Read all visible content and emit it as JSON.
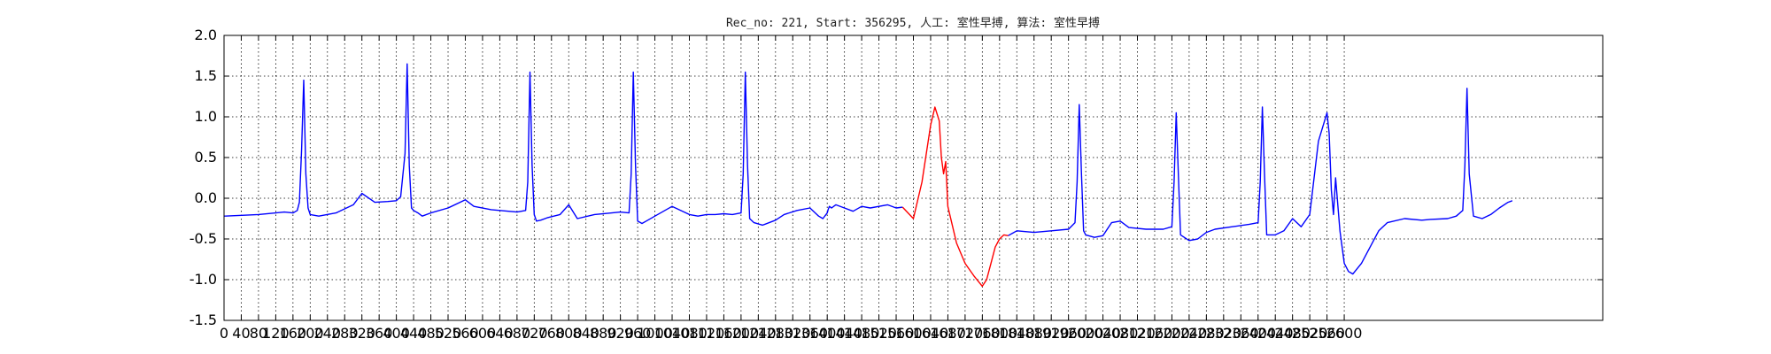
{
  "chart_data": {
    "type": "line",
    "title": "Rec_no: 221, Start: 356295, 人工: 室性早搏, 算法: 室性早搏",
    "xlabel": "",
    "ylabel": "",
    "xlim": [
      0,
      3200
    ],
    "ylim": [
      -1.5,
      2.0
    ],
    "grid": true,
    "y_ticks": [
      "2.0",
      "1.5",
      "1.0",
      "0.5",
      "0.0",
      "-0.5",
      "-1.0",
      "-1.5"
    ],
    "x_ticks": [
      "0",
      "40",
      "80",
      "120",
      "160",
      "200",
      "240",
      "280",
      "320",
      "360",
      "400",
      "440",
      "480",
      "520",
      "560",
      "600",
      "640",
      "680",
      "720",
      "760",
      "800",
      "840",
      "880",
      "920",
      "960",
      "1000",
      "1040",
      "1080",
      "1120",
      "1160",
      "1200",
      "1240",
      "1280",
      "1320",
      "1360",
      "1400",
      "1440",
      "1480",
      "1520",
      "1560",
      "1600",
      "1640",
      "1680",
      "1720",
      "1760",
      "1800",
      "1840",
      "1880",
      "1920",
      "1960",
      "2000",
      "2040",
      "2080",
      "2120",
      "2160",
      "2200",
      "2240",
      "2280",
      "2320",
      "2360",
      "2400",
      "2440",
      "2480",
      "2520",
      "2560",
      "2600"
    ],
    "series": [
      {
        "color": "#0000ff",
        "x": [
          0,
          80,
          120,
          140,
          160,
          170,
          175,
          180,
          185,
          190,
          195,
          200,
          220,
          260,
          300,
          320,
          350,
          380,
          400,
          410,
          420,
          425,
          430,
          435,
          440,
          450,
          460,
          480,
          520,
          560,
          580,
          620,
          660,
          680,
          700,
          705,
          710,
          715,
          720,
          725,
          735,
          750,
          780,
          800,
          820,
          860,
          900,
          920,
          940,
          945,
          950,
          955,
          960,
          970,
          980,
          1000,
          1040,
          1080,
          1100,
          1120,
          1140,
          1160,
          1180,
          1200,
          1205,
          1210,
          1215,
          1220,
          1230,
          1250,
          1280,
          1300,
          1330,
          1360,
          1380,
          1390,
          1400,
          1402,
          1405,
          1410,
          1415,
          1420,
          1440,
          1460,
          1480,
          1500,
          1540,
          1560,
          1575
        ],
        "y": [
          -0.22,
          -0.2,
          -0.18,
          -0.17,
          -0.18,
          -0.15,
          -0.05,
          0.6,
          1.45,
          0.3,
          -0.12,
          -0.2,
          -0.22,
          -0.18,
          -0.08,
          0.06,
          -0.05,
          -0.04,
          -0.03,
          0.02,
          0.55,
          1.65,
          0.4,
          -0.12,
          -0.15,
          -0.18,
          -0.22,
          -0.18,
          -0.12,
          -0.02,
          -0.1,
          -0.14,
          -0.16,
          -0.17,
          -0.15,
          0.2,
          1.55,
          0.4,
          -0.2,
          -0.28,
          -0.27,
          -0.24,
          -0.2,
          -0.08,
          -0.25,
          -0.2,
          -0.18,
          -0.17,
          -0.18,
          0.3,
          1.55,
          0.4,
          -0.28,
          -0.31,
          -0.28,
          -0.22,
          -0.1,
          -0.2,
          -0.22,
          -0.2,
          -0.2,
          -0.19,
          -0.2,
          -0.18,
          0.3,
          1.55,
          0.4,
          -0.25,
          -0.3,
          -0.33,
          -0.27,
          -0.2,
          -0.15,
          -0.12,
          -0.22,
          -0.25,
          -0.18,
          -0.14,
          -0.1,
          -0.12,
          -0.1,
          -0.08,
          -0.12,
          -0.16,
          -0.1,
          -0.12,
          -0.08,
          -0.12,
          -0.11
        ]
      },
      {
        "color": "#ff0000",
        "x": [
          1575,
          1600,
          1620,
          1640,
          1650,
          1660,
          1665,
          1670,
          1675,
          1680,
          1700,
          1720,
          1740,
          1760,
          1770,
          1780,
          1790,
          1800,
          1810,
          1820
        ],
        "y": [
          -0.11,
          -0.25,
          0.2,
          0.9,
          1.12,
          0.95,
          0.5,
          0.3,
          0.45,
          -0.1,
          -0.55,
          -0.8,
          -0.95,
          -1.08,
          -1.0,
          -0.8,
          -0.6,
          -0.5,
          -0.45,
          -0.46
        ]
      },
      {
        "color": "#0000ff",
        "x": [
          1820,
          1840,
          1880,
          1920,
          1960,
          1975,
          1980,
          1985,
          1990,
          1995,
          2000,
          2020,
          2040,
          2060,
          2080,
          2100,
          2140,
          2180,
          2200,
          2205,
          2210,
          2215,
          2220,
          2240,
          2260,
          2280,
          2300,
          2340,
          2380,
          2400,
          2405,
          2410,
          2415,
          2420,
          2440,
          2460,
          2480,
          2500,
          2520,
          2540,
          2560,
          2565,
          2570,
          2575,
          2580,
          2590,
          2600,
          2610,
          2620,
          2640,
          2680,
          2700,
          2740,
          2780,
          2800,
          2840,
          2860,
          2875,
          2880,
          2885,
          2890,
          2900,
          2920,
          2940,
          2960,
          2980,
          2990
        ],
        "y": [
          -0.46,
          -0.4,
          -0.42,
          -0.4,
          -0.38,
          -0.3,
          0.2,
          1.15,
          0.3,
          -0.4,
          -0.45,
          -0.48,
          -0.46,
          -0.3,
          -0.28,
          -0.36,
          -0.38,
          -0.38,
          -0.35,
          0.2,
          1.05,
          0.3,
          -0.45,
          -0.52,
          -0.5,
          -0.42,
          -0.38,
          -0.35,
          -0.32,
          -0.3,
          0.2,
          1.12,
          0.3,
          -0.45,
          -0.45,
          -0.4,
          -0.25,
          -0.35,
          -0.2,
          0.7,
          1.05,
          0.8,
          0.1,
          -0.2,
          0.25,
          -0.4,
          -0.8,
          -0.9,
          -0.93,
          -0.8,
          -0.4,
          -0.3,
          -0.25,
          -0.27,
          -0.26,
          -0.25,
          -0.22,
          -0.15,
          0.4,
          1.35,
          0.3,
          -0.22,
          -0.25,
          -0.2,
          -0.12,
          -0.05,
          -0.03
        ]
      }
    ]
  }
}
